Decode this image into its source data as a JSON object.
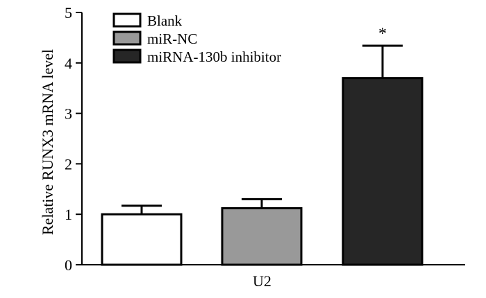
{
  "chart_data": {
    "type": "bar",
    "title": "",
    "xlabel": "",
    "ylabel": "Relative RUNX3 mRNA level",
    "categories": [
      "U2"
    ],
    "ylim": [
      0,
      5
    ],
    "yticks": [
      0,
      1,
      2,
      3,
      4,
      5
    ],
    "grid": false,
    "legend_position": "top-left",
    "series": [
      {
        "name": "Blank",
        "values": [
          1.0
        ],
        "error": [
          0.17
        ],
        "color": "#ffffff"
      },
      {
        "name": "miR-NC",
        "values": [
          1.12
        ],
        "error": [
          0.18
        ],
        "color": "#999999"
      },
      {
        "name": "miRNA-130b inhibitor",
        "values": [
          3.7
        ],
        "error": [
          0.64
        ],
        "color": "#262626"
      }
    ],
    "annotations": [
      {
        "text": "*",
        "series": "miRNA-130b inhibitor",
        "category": "U2"
      }
    ]
  }
}
